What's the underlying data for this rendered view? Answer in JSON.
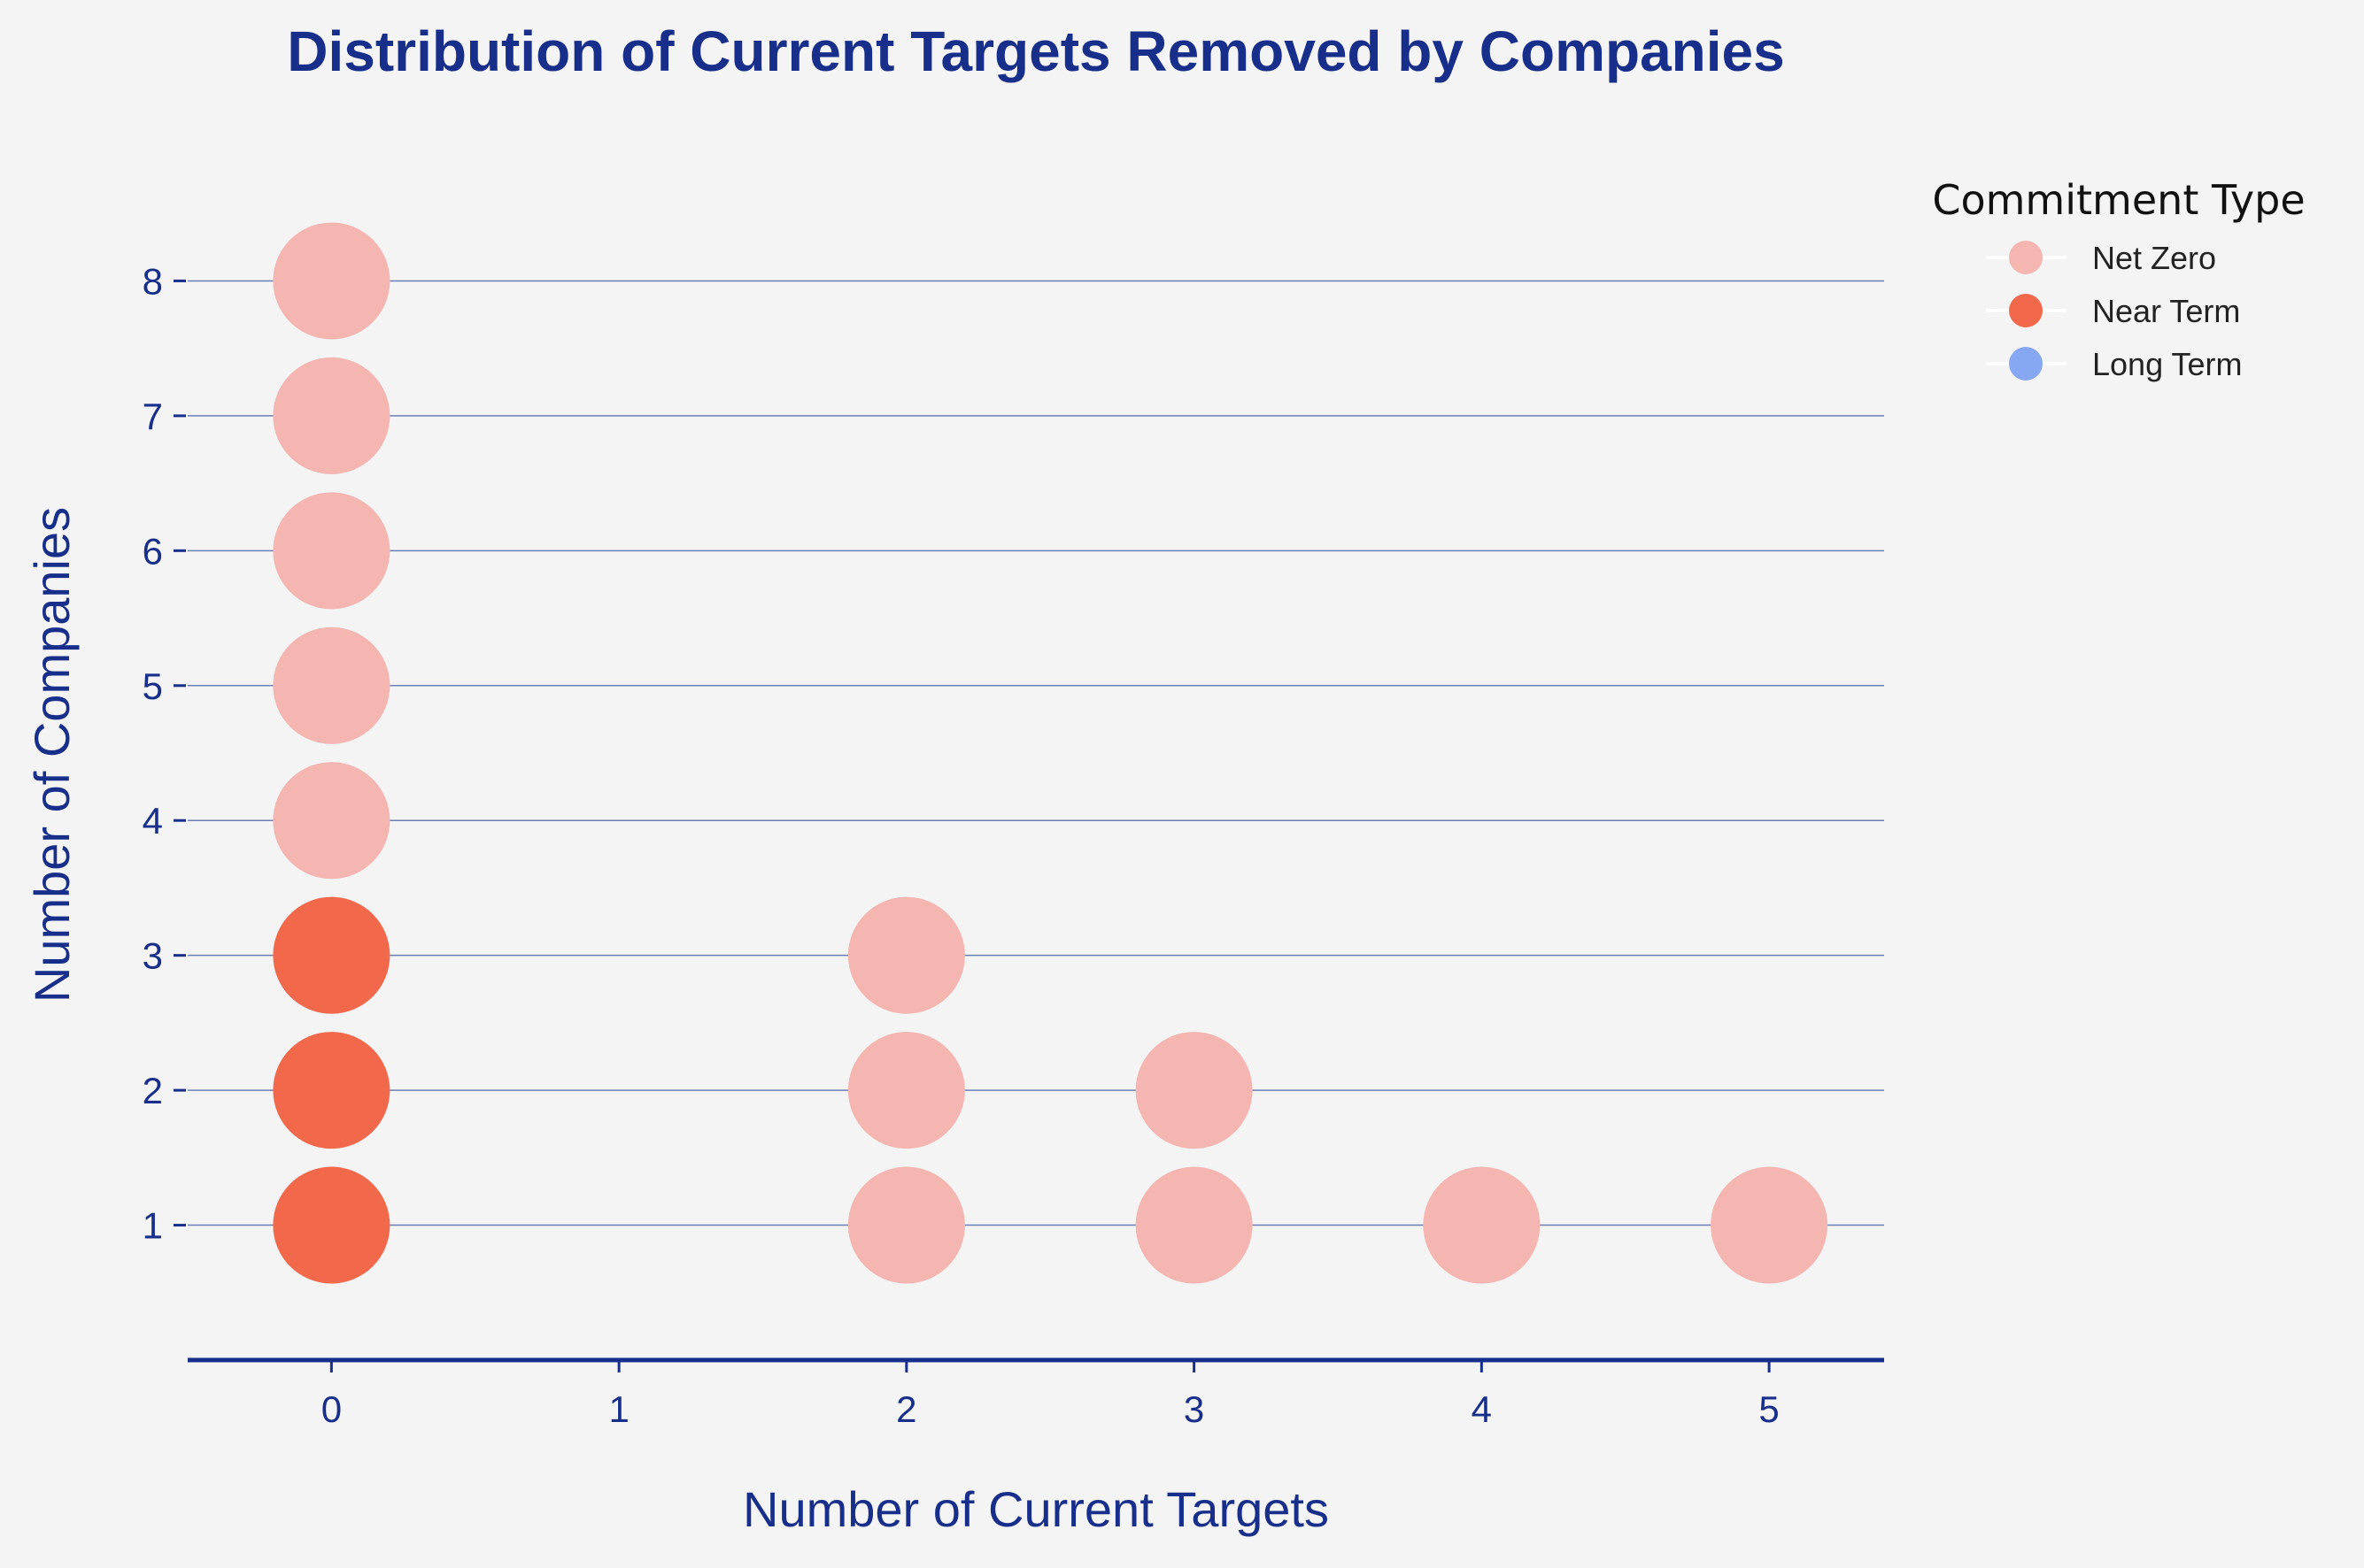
{
  "chart_data": {
    "type": "scatter",
    "title": "Distribution of Current Targets Removed by Companies",
    "xlabel": "Number of Current Targets",
    "ylabel": "Number of Companies",
    "x_ticks": [
      0,
      1,
      2,
      3,
      4,
      5
    ],
    "y_ticks": [
      1,
      2,
      3,
      4,
      5,
      6,
      7,
      8
    ],
    "xlim": [
      -0.5,
      5.4
    ],
    "ylim": [
      0,
      9
    ],
    "grid": "horizontal",
    "legend": {
      "title": "Commitment Type",
      "placement": "top-right outside"
    },
    "series": [
      {
        "name": "Net Zero",
        "color": "#f5b5b0",
        "points": [
          {
            "x": 0,
            "y": 4
          },
          {
            "x": 0,
            "y": 5
          },
          {
            "x": 0,
            "y": 6
          },
          {
            "x": 0,
            "y": 7
          },
          {
            "x": 0,
            "y": 8
          },
          {
            "x": 2,
            "y": 1
          },
          {
            "x": 2,
            "y": 2
          },
          {
            "x": 2,
            "y": 3
          },
          {
            "x": 3,
            "y": 1
          },
          {
            "x": 3,
            "y": 2
          },
          {
            "x": 4,
            "y": 1
          },
          {
            "x": 5,
            "y": 1
          }
        ]
      },
      {
        "name": "Near Term",
        "color": "#f2684b",
        "points": [
          {
            "x": 0,
            "y": 1
          },
          {
            "x": 0,
            "y": 2
          },
          {
            "x": 0,
            "y": 3
          }
        ]
      },
      {
        "name": "Long Term",
        "color": "#86a8f2",
        "points": []
      }
    ]
  }
}
